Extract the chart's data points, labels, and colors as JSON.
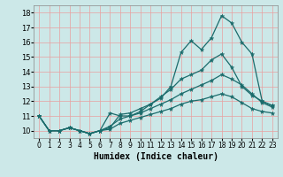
{
  "xlabel": "Humidex (Indice chaleur)",
  "bg_color": "#cce8e8",
  "line_color": "#1a6b6b",
  "grid_color": "#e8a0a0",
  "xlim": [
    -0.5,
    23.5
  ],
  "ylim": [
    9.5,
    18.5
  ],
  "xticks": [
    0,
    1,
    2,
    3,
    4,
    5,
    6,
    7,
    8,
    9,
    10,
    11,
    12,
    13,
    14,
    15,
    16,
    17,
    18,
    19,
    20,
    21,
    22,
    23
  ],
  "yticks": [
    10,
    11,
    12,
    13,
    14,
    15,
    16,
    17,
    18
  ],
  "lines": [
    {
      "x": [
        0,
        1,
        2,
        3,
        4,
        5,
        6,
        7,
        8,
        9,
        10,
        11,
        12,
        13,
        14,
        15,
        16,
        17,
        18,
        19,
        20,
        21,
        22,
        23
      ],
      "y": [
        11,
        10,
        10,
        10.2,
        10,
        9.8,
        10,
        11.2,
        11,
        11,
        11.3,
        11.8,
        12.2,
        13.0,
        15.3,
        16.1,
        15.5,
        16.3,
        17.8,
        17.3,
        16.0,
        15.2,
        12.0,
        11.7
      ]
    },
    {
      "x": [
        0,
        1,
        2,
        3,
        4,
        5,
        6,
        7,
        8,
        9,
        10,
        11,
        12,
        13,
        14,
        15,
        16,
        17,
        18,
        19,
        20,
        21,
        22,
        23
      ],
      "y": [
        11,
        10,
        10,
        10.2,
        10,
        9.8,
        10,
        10.2,
        11.1,
        11.2,
        11.5,
        11.8,
        12.3,
        12.8,
        13.5,
        13.8,
        14.1,
        14.8,
        15.2,
        14.3,
        13.0,
        12.4,
        12.0,
        11.7
      ]
    },
    {
      "x": [
        0,
        1,
        2,
        3,
        4,
        5,
        6,
        7,
        8,
        9,
        10,
        11,
        12,
        13,
        14,
        15,
        16,
        17,
        18,
        19,
        20,
        21,
        22,
        23
      ],
      "y": [
        11,
        10,
        10,
        10.2,
        10,
        9.8,
        10,
        10.3,
        10.8,
        11,
        11.2,
        11.5,
        11.8,
        12.1,
        12.5,
        12.8,
        13.1,
        13.4,
        13.8,
        13.5,
        13.1,
        12.5,
        11.9,
        11.6
      ]
    },
    {
      "x": [
        0,
        1,
        2,
        3,
        4,
        5,
        6,
        7,
        8,
        9,
        10,
        11,
        12,
        13,
        14,
        15,
        16,
        17,
        18,
        19,
        20,
        21,
        22,
        23
      ],
      "y": [
        11,
        10,
        10,
        10.2,
        10,
        9.8,
        10,
        10.1,
        10.5,
        10.7,
        10.9,
        11.1,
        11.3,
        11.5,
        11.8,
        12.0,
        12.1,
        12.3,
        12.5,
        12.3,
        11.9,
        11.5,
        11.3,
        11.2
      ]
    }
  ]
}
